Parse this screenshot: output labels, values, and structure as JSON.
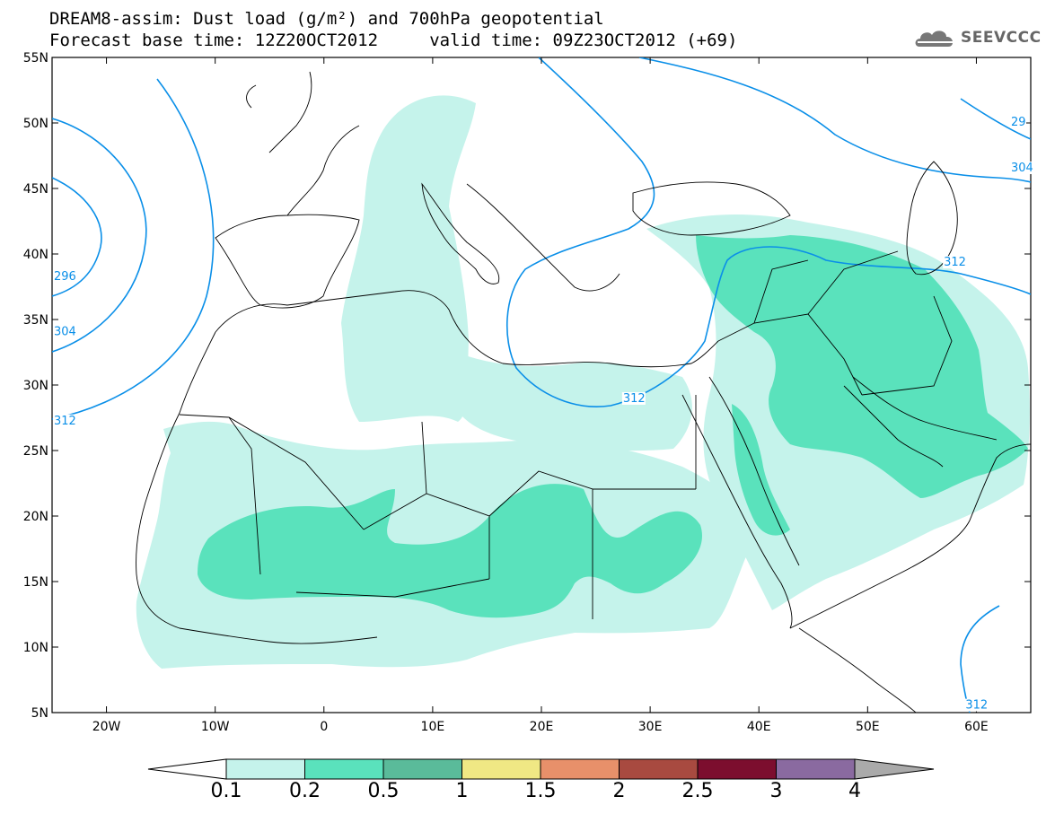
{
  "header": {
    "title_line1": "DREAM8-assim: Dust load (g/m²) and 700hPa geopotential",
    "title_line2": "Forecast base time: 12Z20OCT2012     valid time: 09Z23OCT2012 (+69)",
    "logo_text": "SEEVCCC",
    "logo_icon": "cloud-icon"
  },
  "map": {
    "lon_range": [
      -25,
      65
    ],
    "lat_range": [
      5,
      55
    ],
    "lat_ticks": [
      {
        "value": 55,
        "label": "55N"
      },
      {
        "value": 50,
        "label": "50N"
      },
      {
        "value": 45,
        "label": "45N"
      },
      {
        "value": 40,
        "label": "40N"
      },
      {
        "value": 35,
        "label": "35N"
      },
      {
        "value": 30,
        "label": "30N"
      },
      {
        "value": 25,
        "label": "25N"
      },
      {
        "value": 20,
        "label": "20N"
      },
      {
        "value": 15,
        "label": "15N"
      },
      {
        "value": 10,
        "label": "10N"
      },
      {
        "value": 5,
        "label": "5N"
      }
    ],
    "lon_ticks": [
      {
        "value": -20,
        "label": "20W"
      },
      {
        "value": -10,
        "label": "10W"
      },
      {
        "value": 0,
        "label": "0"
      },
      {
        "value": 10,
        "label": "10E"
      },
      {
        "value": 20,
        "label": "20E"
      },
      {
        "value": 30,
        "label": "30E"
      },
      {
        "value": 40,
        "label": "40E"
      },
      {
        "value": 50,
        "label": "50E"
      },
      {
        "value": 60,
        "label": "60E"
      }
    ],
    "contour_color": "#0a8fe8",
    "contour_labels": [
      {
        "text": "296",
        "lon": -25,
        "lat": 38
      },
      {
        "text": "304",
        "lon": -25,
        "lat": 33.8
      },
      {
        "text": "312",
        "lon": -25,
        "lat": 27
      },
      {
        "text": "312",
        "lon": 27.5,
        "lat": 28.7
      },
      {
        "text": "312",
        "lon": 57,
        "lat": 39.1
      },
      {
        "text": "304",
        "lon": 63.5,
        "lat": 46.3
      },
      {
        "text": "29",
        "lon": 64,
        "lat": 49.8
      },
      {
        "text": "312",
        "lon": 59,
        "lat": 5.3
      }
    ]
  },
  "colorbar": {
    "levels": [
      "0.1",
      "0.2",
      "0.5",
      "1",
      "1.5",
      "2",
      "2.5",
      "3",
      "4"
    ],
    "colors": [
      "#c5f3eb",
      "#5ae2bc",
      "#5abb9a",
      "#f0e884",
      "#e8906a",
      "#a84a40",
      "#7c0e2e",
      "#8a6aa0"
    ],
    "under_color": "#ffffff",
    "over_color": "#aaaaaa"
  }
}
